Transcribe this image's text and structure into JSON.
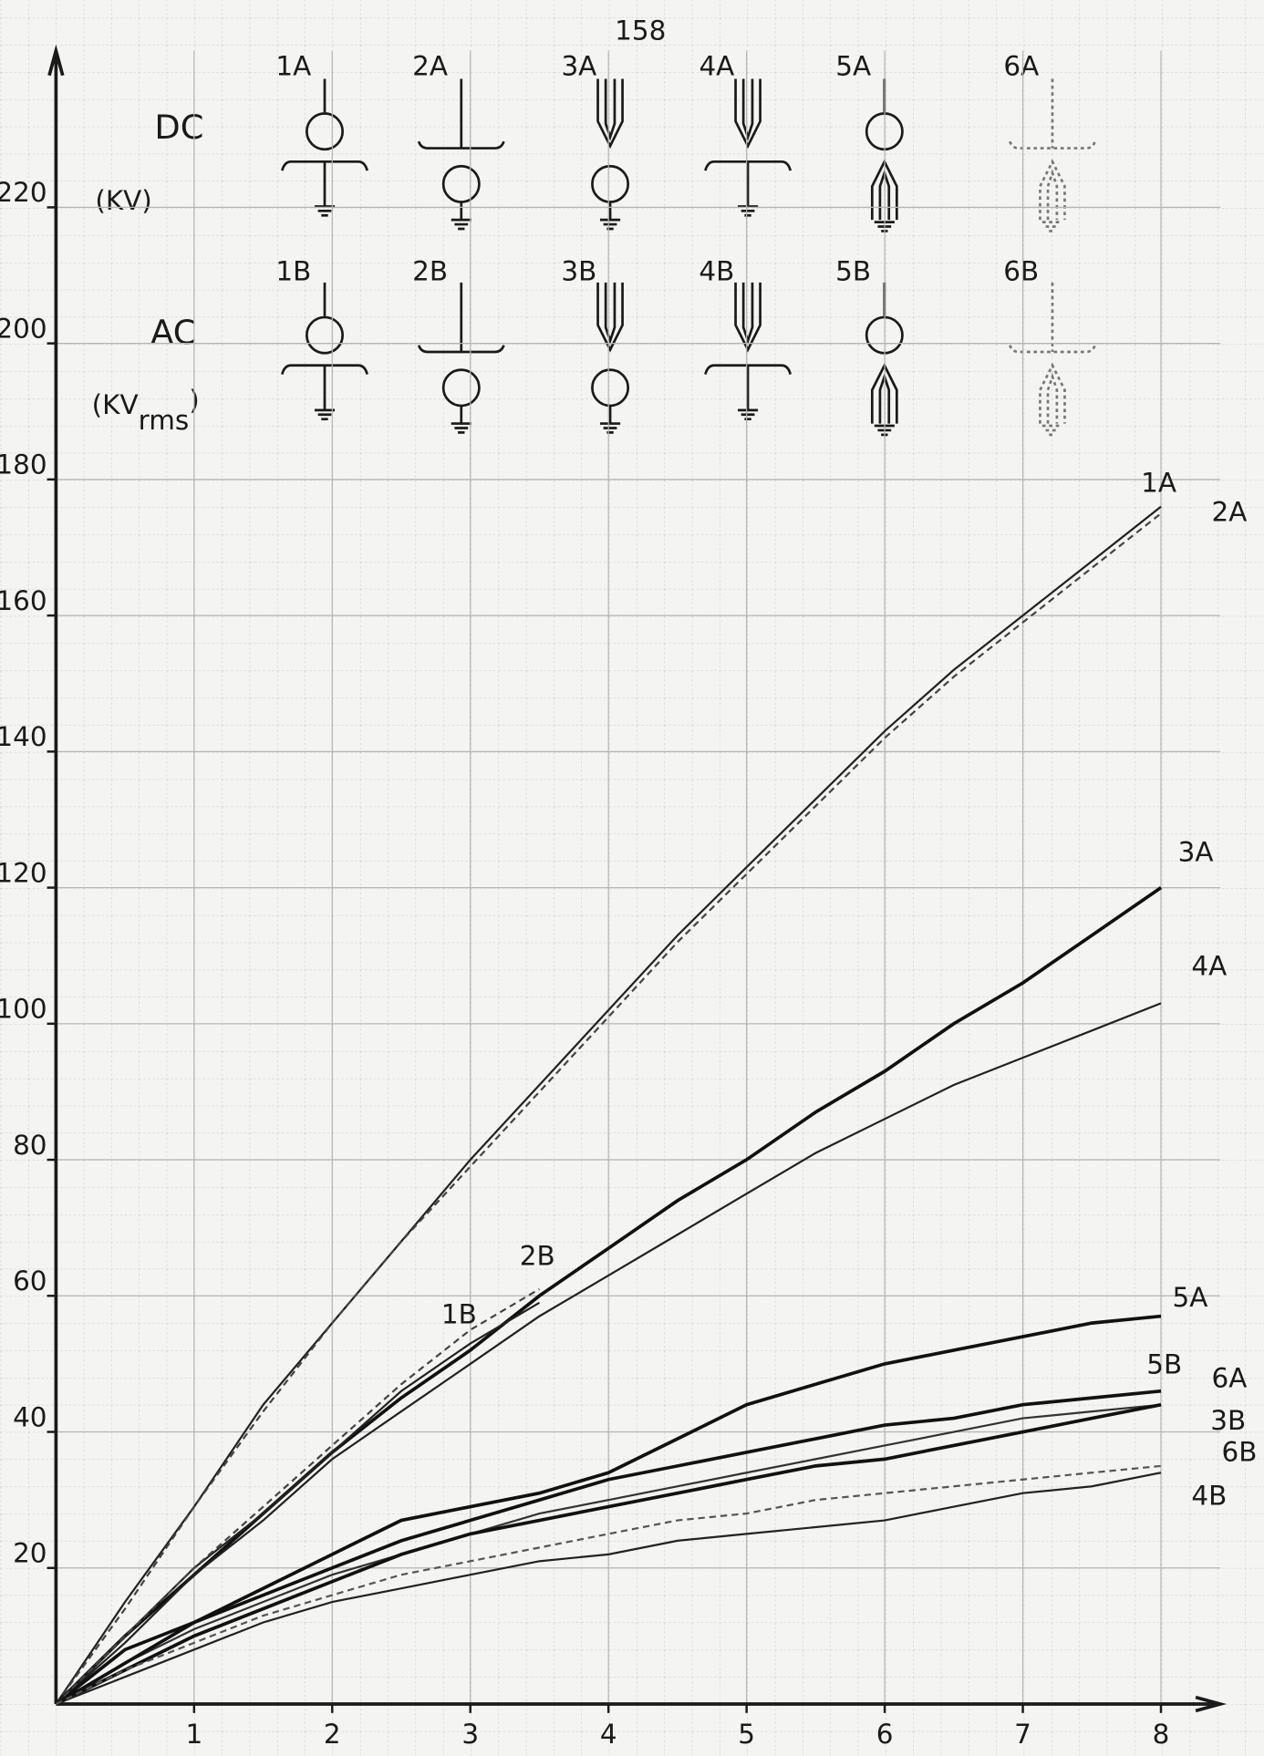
{
  "page_number": "158",
  "dc_label": "DC",
  "dc_unit": "(KV)",
  "ac_label": "AC",
  "ac_unit": [
    "(KV",
    "rms",
    ")"
  ],
  "dc_configs": [
    "1A",
    "2A",
    "3A",
    "4A",
    "5A",
    "6A"
  ],
  "ac_configs": [
    "1B",
    "2B",
    "3B",
    "4B",
    "5B",
    "6B"
  ],
  "chart_data": {
    "type": "line",
    "x": [
      0,
      0.5,
      1,
      1.5,
      2,
      2.5,
      3,
      3.5,
      4,
      4.5,
      5,
      5.5,
      6,
      6.5,
      7,
      7.5,
      8
    ],
    "xlim": [
      0,
      8.43
    ],
    "ylim": [
      0,
      243
    ],
    "xticks": [
      1,
      2,
      3,
      4,
      5,
      6,
      7,
      8
    ],
    "yticks": [
      20,
      40,
      60,
      80,
      100,
      120,
      140,
      160,
      180,
      200,
      220
    ],
    "grid": true,
    "series": [
      {
        "name": "1A",
        "color": "#222222",
        "values": [
          0,
          15,
          29,
          44,
          56,
          68,
          80,
          91,
          102,
          113,
          123,
          133,
          143,
          152,
          160,
          168,
          176
        ]
      },
      {
        "name": "2A",
        "color": "#444444",
        "dashed": true,
        "values": [
          0,
          14,
          29,
          43,
          56,
          68,
          79,
          90,
          101,
          112,
          122,
          132,
          142,
          151,
          159,
          167,
          175
        ]
      },
      {
        "name": "3A",
        "color": "#111111",
        "bold": true,
        "values": [
          0,
          10,
          19,
          28,
          37,
          45,
          52,
          60,
          67,
          74,
          80,
          87,
          93,
          100,
          106,
          113,
          120
        ]
      },
      {
        "name": "4A",
        "color": "#222222",
        "values": [
          0,
          9,
          19,
          27,
          36,
          43,
          50,
          57,
          63,
          69,
          75,
          81,
          86,
          91,
          95,
          99,
          103
        ]
      },
      {
        "name": "5A",
        "color": "#111111",
        "bold": true,
        "values": [
          0,
          8,
          12,
          17,
          22,
          27,
          29,
          31,
          34,
          39,
          44,
          47,
          50,
          52,
          54,
          56,
          57
        ]
      },
      {
        "name": "6A",
        "color": "#333333",
        "values": [
          0,
          6,
          11,
          15,
          19,
          22,
          25,
          28,
          30,
          32,
          34,
          36,
          38,
          40,
          42,
          43,
          44
        ]
      },
      {
        "name": "1B",
        "color": "#222222",
        "values": [
          0,
          10,
          20,
          28,
          37,
          46,
          53,
          59,
          null,
          null,
          null,
          null,
          null,
          null,
          null,
          null,
          null
        ]
      },
      {
        "name": "2B",
        "color": "#444444",
        "dashed": true,
        "values": [
          0,
          10,
          20,
          29,
          38,
          47,
          55,
          61,
          null,
          null,
          null,
          null,
          null,
          null,
          null,
          null,
          null
        ]
      },
      {
        "name": "3B",
        "color": "#111111",
        "bold": true,
        "values": [
          0,
          5,
          10,
          14,
          18,
          22,
          25,
          27,
          29,
          31,
          33,
          35,
          36,
          38,
          40,
          42,
          44
        ]
      },
      {
        "name": "4B",
        "color": "#222222",
        "values": [
          0,
          4,
          8,
          12,
          15,
          17,
          19,
          21,
          22,
          24,
          25,
          26,
          27,
          29,
          31,
          32,
          34
        ]
      },
      {
        "name": "5B",
        "color": "#111111",
        "bold": true,
        "values": [
          0,
          6,
          12,
          16,
          20,
          24,
          27,
          30,
          33,
          35,
          37,
          39,
          41,
          42,
          44,
          45,
          46
        ]
      },
      {
        "name": "6B",
        "color": "#555555",
        "dashed": true,
        "values": [
          0,
          5,
          9,
          13,
          16,
          19,
          21,
          23,
          25,
          27,
          28,
          30,
          31,
          32,
          33,
          34,
          35
        ]
      }
    ]
  }
}
